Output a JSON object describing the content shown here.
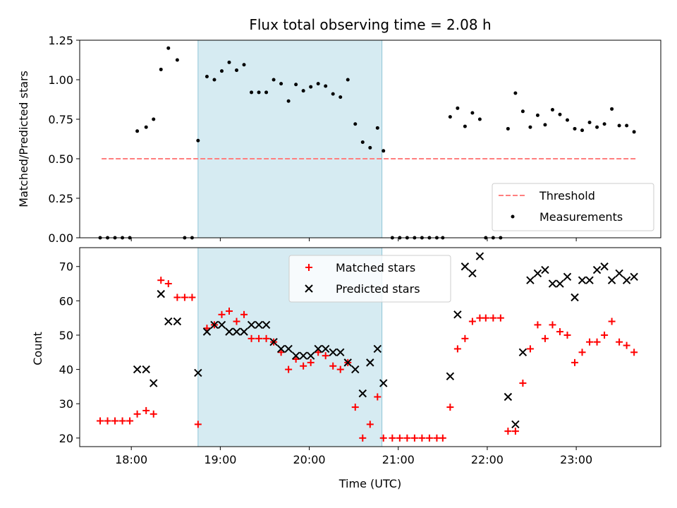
{
  "chart_data": [
    {
      "type": "scatter",
      "title": "Flux total observing time = 2.08 h",
      "xlabel": "",
      "ylabel": "Matched/Predicted stars",
      "ylim": [
        0,
        1.25
      ],
      "yticks": [
        "0.00",
        "0.25",
        "0.50",
        "0.75",
        "1.00",
        "1.25"
      ],
      "xlim_hours": [
        17.42,
        23.95
      ],
      "xticks": [
        "18:00",
        "19:00",
        "20:00",
        "21:00",
        "22:00",
        "23:00"
      ],
      "shaded_interval": [
        "18:45",
        "20:49"
      ],
      "legend_placement": "lower-right",
      "threshold": {
        "name": "Threshold",
        "value": 0.5,
        "x_range": [
          "17:40",
          "23:40"
        ],
        "color": "#ff7f7f"
      },
      "series": [
        {
          "name": "Measurements",
          "color": "#000000",
          "points": [
            [
              "17:39",
              0.0
            ],
            [
              "17:44",
              0.0
            ],
            [
              "17:49",
              0.0
            ],
            [
              "17:54",
              0.0
            ],
            [
              "17:59",
              0.0
            ],
            [
              "18:04",
              0.675
            ],
            [
              "18:10",
              0.7
            ],
            [
              "18:15",
              0.75
            ],
            [
              "18:20",
              1.065
            ],
            [
              "18:25",
              1.2
            ],
            [
              "18:31",
              1.125
            ],
            [
              "18:36",
              0.0
            ],
            [
              "18:41",
              0.0
            ],
            [
              "18:45",
              0.615
            ],
            [
              "18:51",
              1.02
            ],
            [
              "18:56",
              1.0
            ],
            [
              "19:01",
              1.055
            ],
            [
              "19:06",
              1.11
            ],
            [
              "19:11",
              1.06
            ],
            [
              "19:16",
              1.095
            ],
            [
              "19:21",
              0.92
            ],
            [
              "19:26",
              0.92
            ],
            [
              "19:31",
              0.92
            ],
            [
              "19:36",
              1.0
            ],
            [
              "19:41",
              0.975
            ],
            [
              "19:46",
              0.865
            ],
            [
              "19:51",
              0.97
            ],
            [
              "19:56",
              0.93
            ],
            [
              "20:01",
              0.955
            ],
            [
              "20:06",
              0.975
            ],
            [
              "20:11",
              0.96
            ],
            [
              "20:16",
              0.91
            ],
            [
              "20:21",
              0.89
            ],
            [
              "20:26",
              1.0
            ],
            [
              "20:31",
              0.72
            ],
            [
              "20:36",
              0.605
            ],
            [
              "20:41",
              0.57
            ],
            [
              "20:46",
              0.695
            ],
            [
              "20:50",
              0.55
            ],
            [
              "20:56",
              0.0
            ],
            [
              "21:01",
              0.0
            ],
            [
              "21:06",
              0.0
            ],
            [
              "21:11",
              0.0
            ],
            [
              "21:16",
              0.0
            ],
            [
              "21:21",
              0.0
            ],
            [
              "21:26",
              0.0
            ],
            [
              "21:30",
              0.0
            ],
            [
              "21:35",
              0.765
            ],
            [
              "21:40",
              0.82
            ],
            [
              "21:45",
              0.705
            ],
            [
              "21:50",
              0.79
            ],
            [
              "21:55",
              0.75
            ],
            [
              "21:59",
              0.0
            ],
            [
              "22:04",
              0.0
            ],
            [
              "22:09",
              0.0
            ],
            [
              "22:14",
              0.69
            ],
            [
              "22:19",
              0.915
            ],
            [
              "22:24",
              0.8
            ],
            [
              "22:29",
              0.7
            ],
            [
              "22:34",
              0.775
            ],
            [
              "22:39",
              0.715
            ],
            [
              "22:44",
              0.81
            ],
            [
              "22:49",
              0.78
            ],
            [
              "22:54",
              0.745
            ],
            [
              "22:59",
              0.69
            ],
            [
              "23:04",
              0.68
            ],
            [
              "23:09",
              0.73
            ],
            [
              "23:14",
              0.7
            ],
            [
              "23:19",
              0.72
            ],
            [
              "23:24",
              0.815
            ],
            [
              "23:29",
              0.71
            ],
            [
              "23:34",
              0.71
            ],
            [
              "23:39",
              0.67
            ]
          ]
        }
      ]
    },
    {
      "type": "scatter",
      "title": "",
      "xlabel": "Time (UTC)",
      "ylabel": "Count",
      "ylim": [
        17.5,
        75.5
      ],
      "yticks": [
        "20",
        "30",
        "40",
        "50",
        "60",
        "70"
      ],
      "xlim_hours": [
        17.42,
        23.95
      ],
      "xticks": [
        "18:00",
        "19:00",
        "20:00",
        "21:00",
        "22:00",
        "23:00"
      ],
      "shaded_interval": [
        "18:45",
        "20:49"
      ],
      "legend_placement": "upper-center",
      "series": [
        {
          "name": "Matched stars",
          "marker": "plus",
          "color": "#ff0000",
          "points": [
            [
              "17:39",
              25
            ],
            [
              "17:44",
              25
            ],
            [
              "17:49",
              25
            ],
            [
              "17:54",
              25
            ],
            [
              "17:59",
              25
            ],
            [
              "18:04",
              27
            ],
            [
              "18:10",
              28
            ],
            [
              "18:15",
              27
            ],
            [
              "18:20",
              66
            ],
            [
              "18:25",
              65
            ],
            [
              "18:31",
              61
            ],
            [
              "18:36",
              61
            ],
            [
              "18:41",
              61
            ],
            [
              "18:45",
              24
            ],
            [
              "18:51",
              52
            ],
            [
              "18:56",
              53
            ],
            [
              "19:01",
              56
            ],
            [
              "19:06",
              57
            ],
            [
              "19:11",
              54
            ],
            [
              "19:16",
              56
            ],
            [
              "19:21",
              49
            ],
            [
              "19:26",
              49
            ],
            [
              "19:31",
              49
            ],
            [
              "19:36",
              48
            ],
            [
              "19:41",
              45
            ],
            [
              "19:46",
              40
            ],
            [
              "19:51",
              43
            ],
            [
              "19:56",
              41
            ],
            [
              "20:01",
              42
            ],
            [
              "20:06",
              45
            ],
            [
              "20:11",
              44
            ],
            [
              "20:16",
              41
            ],
            [
              "20:21",
              40
            ],
            [
              "20:26",
              42
            ],
            [
              "20:31",
              29
            ],
            [
              "20:36",
              20
            ],
            [
              "20:41",
              24
            ],
            [
              "20:46",
              32
            ],
            [
              "20:50",
              20
            ],
            [
              "20:56",
              20
            ],
            [
              "21:01",
              20
            ],
            [
              "21:06",
              20
            ],
            [
              "21:11",
              20
            ],
            [
              "21:16",
              20
            ],
            [
              "21:21",
              20
            ],
            [
              "21:26",
              20
            ],
            [
              "21:30",
              20
            ],
            [
              "21:35",
              29
            ],
            [
              "21:40",
              46
            ],
            [
              "21:45",
              49
            ],
            [
              "21:50",
              54
            ],
            [
              "21:55",
              55
            ],
            [
              "21:59",
              55
            ],
            [
              "22:04",
              55
            ],
            [
              "22:09",
              55
            ],
            [
              "22:14",
              22
            ],
            [
              "22:19",
              22
            ],
            [
              "22:24",
              36
            ],
            [
              "22:29",
              46
            ],
            [
              "22:34",
              53
            ],
            [
              "22:39",
              49
            ],
            [
              "22:44",
              53
            ],
            [
              "22:49",
              51
            ],
            [
              "22:54",
              50
            ],
            [
              "22:59",
              42
            ],
            [
              "23:04",
              45
            ],
            [
              "23:09",
              48
            ],
            [
              "23:14",
              48
            ],
            [
              "23:19",
              50
            ],
            [
              "23:24",
              54
            ],
            [
              "23:29",
              48
            ],
            [
              "23:34",
              47
            ],
            [
              "23:39",
              45
            ]
          ]
        },
        {
          "name": "Predicted stars",
          "marker": "x",
          "color": "#000000",
          "points": [
            [
              "18:04",
              40
            ],
            [
              "18:10",
              40
            ],
            [
              "18:15",
              36
            ],
            [
              "18:20",
              62
            ],
            [
              "18:25",
              54
            ],
            [
              "18:31",
              54
            ],
            [
              "18:45",
              39
            ],
            [
              "18:51",
              51
            ],
            [
              "18:56",
              53
            ],
            [
              "19:01",
              53
            ],
            [
              "19:06",
              51
            ],
            [
              "19:11",
              51
            ],
            [
              "19:16",
              51
            ],
            [
              "19:21",
              53
            ],
            [
              "19:26",
              53
            ],
            [
              "19:31",
              53
            ],
            [
              "19:36",
              48
            ],
            [
              "19:41",
              46
            ],
            [
              "19:46",
              46
            ],
            [
              "19:51",
              44
            ],
            [
              "19:56",
              44
            ],
            [
              "20:01",
              44
            ],
            [
              "20:06",
              46
            ],
            [
              "20:11",
              46
            ],
            [
              "20:16",
              45
            ],
            [
              "20:21",
              45
            ],
            [
              "20:26",
              42
            ],
            [
              "20:31",
              40
            ],
            [
              "20:36",
              33
            ],
            [
              "20:41",
              42
            ],
            [
              "20:46",
              46
            ],
            [
              "20:50",
              36
            ],
            [
              "21:35",
              38
            ],
            [
              "21:40",
              56
            ],
            [
              "21:45",
              70
            ],
            [
              "21:50",
              68
            ],
            [
              "21:55",
              73
            ],
            [
              "22:14",
              32
            ],
            [
              "22:19",
              24
            ],
            [
              "22:24",
              45
            ],
            [
              "22:29",
              66
            ],
            [
              "22:34",
              68
            ],
            [
              "22:39",
              69
            ],
            [
              "22:44",
              65
            ],
            [
              "22:49",
              65
            ],
            [
              "22:54",
              67
            ],
            [
              "22:59",
              61
            ],
            [
              "23:04",
              66
            ],
            [
              "23:09",
              66
            ],
            [
              "23:14",
              69
            ],
            [
              "23:19",
              70
            ],
            [
              "23:24",
              66
            ],
            [
              "23:29",
              68
            ],
            [
              "23:34",
              66
            ],
            [
              "23:39",
              67
            ]
          ]
        }
      ]
    }
  ]
}
